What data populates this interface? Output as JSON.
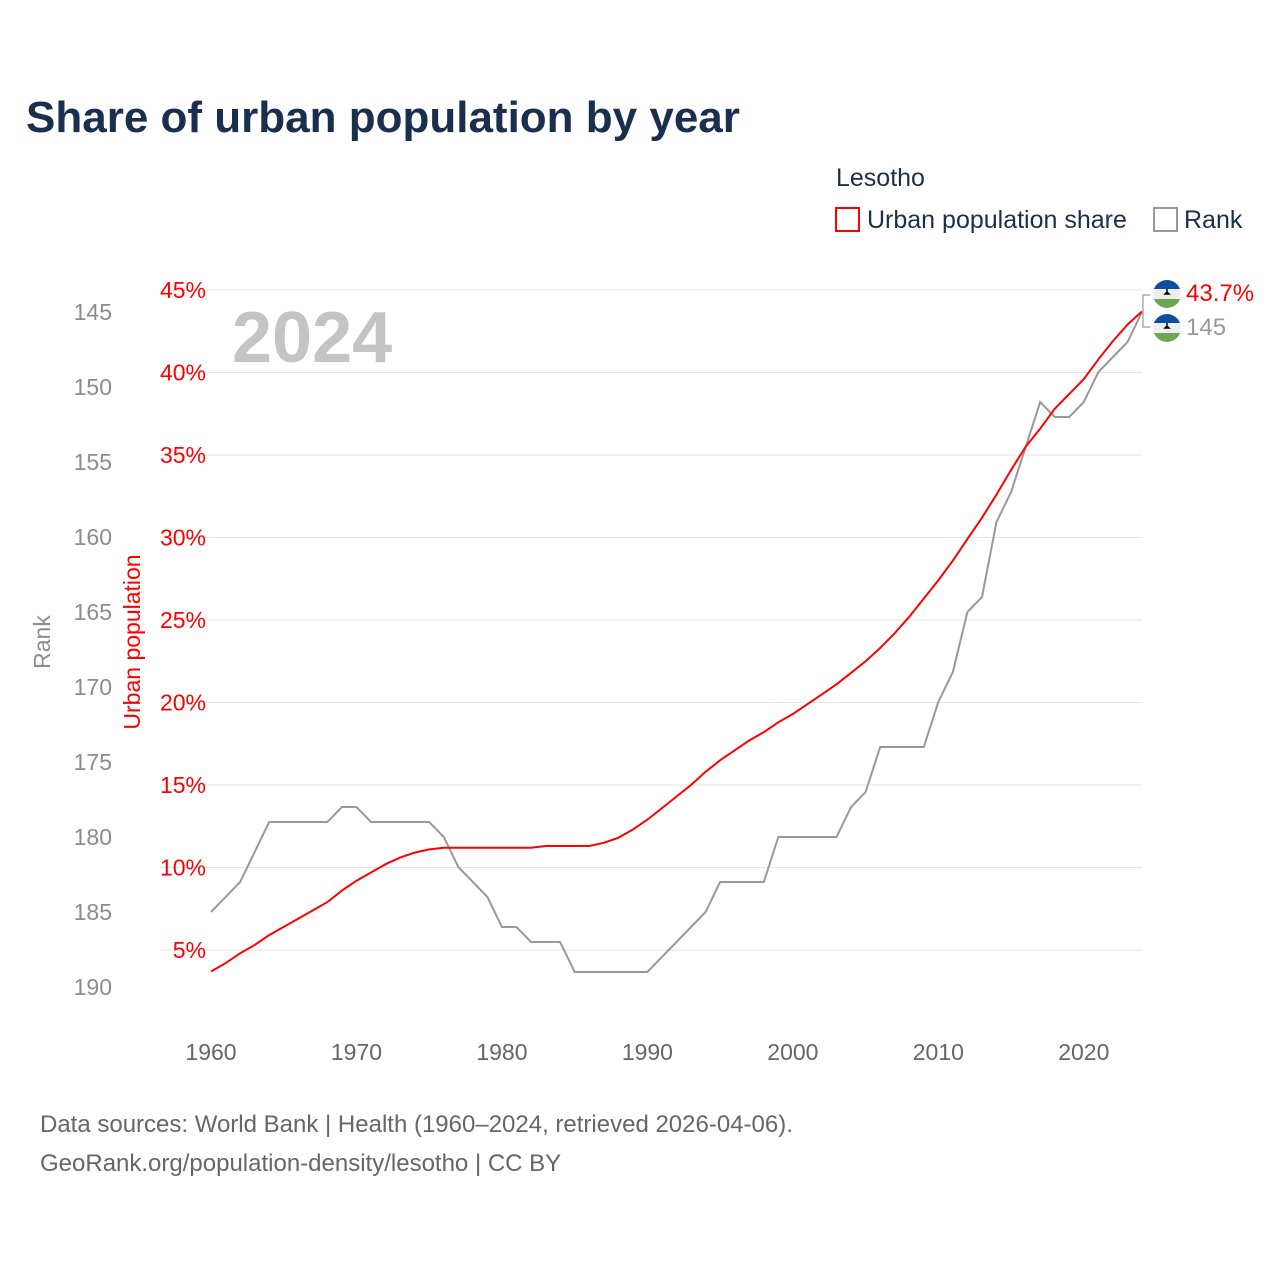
{
  "chart_data": {
    "type": "line",
    "title": "Share of urban population by year",
    "legend": {
      "title": "Lesotho",
      "entries": [
        "Urban population share",
        "Rank"
      ],
      "placement": "top-right"
    },
    "year_label": "2024",
    "xlabel": "",
    "ylabel_left": "Urban population",
    "ylabel_right": "Rank",
    "xlim": [
      1960,
      2024
    ],
    "x_ticks": [
      "1960",
      "1970",
      "1980",
      "1990",
      "2000",
      "2010",
      "2020"
    ],
    "ylim_left": [
      0,
      45
    ],
    "y_ticks_left": [
      "5%",
      "10%",
      "15%",
      "20%",
      "25%",
      "30%",
      "35%",
      "40%",
      "45%"
    ],
    "ylim_rank": [
      145,
      190
    ],
    "y_ticks_rank": [
      "145",
      "150",
      "155",
      "160",
      "165",
      "170",
      "175",
      "180",
      "185",
      "190"
    ],
    "colors": {
      "urban": "#ff0000",
      "rank": "#999999",
      "title": "#1a2e4d"
    },
    "series": [
      {
        "name": "Urban population share",
        "unit": "%",
        "x_start": 1960,
        "values": [
          3.7,
          4.2,
          4.8,
          5.3,
          5.9,
          6.4,
          6.9,
          7.4,
          7.9,
          8.6,
          9.2,
          9.7,
          10.2,
          10.6,
          10.9,
          11.1,
          11.2,
          11.2,
          11.2,
          11.2,
          11.2,
          11.2,
          11.2,
          11.3,
          11.3,
          11.3,
          11.3,
          11.5,
          11.8,
          12.3,
          12.9,
          13.6,
          14.3,
          15.0,
          15.8,
          16.5,
          17.1,
          17.7,
          18.2,
          18.8,
          19.3,
          19.9,
          20.5,
          21.1,
          21.8,
          22.5,
          23.3,
          24.2,
          25.2,
          26.3,
          27.4,
          28.6,
          29.9,
          31.2,
          32.6,
          34.1,
          35.5,
          36.6,
          37.8,
          38.7,
          39.6,
          40.8,
          41.9,
          42.9,
          43.7
        ],
        "end_label": "43.7%"
      },
      {
        "name": "Rank",
        "points": [
          [
            1960,
            185
          ],
          [
            1962,
            183
          ],
          [
            1964,
            179
          ],
          [
            1968,
            179
          ],
          [
            1969,
            178
          ],
          [
            1970,
            178
          ],
          [
            1971,
            179
          ],
          [
            1975,
            179
          ],
          [
            1976,
            180
          ],
          [
            1977,
            182
          ],
          [
            1979,
            184
          ],
          [
            1980,
            186
          ],
          [
            1981,
            186
          ],
          [
            1982,
            187
          ],
          [
            1984,
            187
          ],
          [
            1985,
            189
          ],
          [
            1990,
            189
          ],
          [
            1994,
            185
          ],
          [
            1995,
            183
          ],
          [
            1998,
            183
          ],
          [
            1999,
            180
          ],
          [
            2003,
            180
          ],
          [
            2004,
            178
          ],
          [
            2005,
            177
          ],
          [
            2006,
            174
          ],
          [
            2009,
            174
          ],
          [
            2010,
            171
          ],
          [
            2011,
            169
          ],
          [
            2012,
            165
          ],
          [
            2013,
            164
          ],
          [
            2014,
            159
          ],
          [
            2015,
            157
          ],
          [
            2017,
            151
          ],
          [
            2018,
            152
          ],
          [
            2019,
            152
          ],
          [
            2020,
            151
          ],
          [
            2021,
            149
          ],
          [
            2023,
            147
          ],
          [
            2024,
            145
          ]
        ],
        "end_label": "145"
      }
    ]
  },
  "footer": {
    "line1": "Data sources: World Bank | Health (1960–2024, retrieved 2026-04-06).",
    "line2": "GeoRank.org/population-density/lesotho | CC BY"
  }
}
